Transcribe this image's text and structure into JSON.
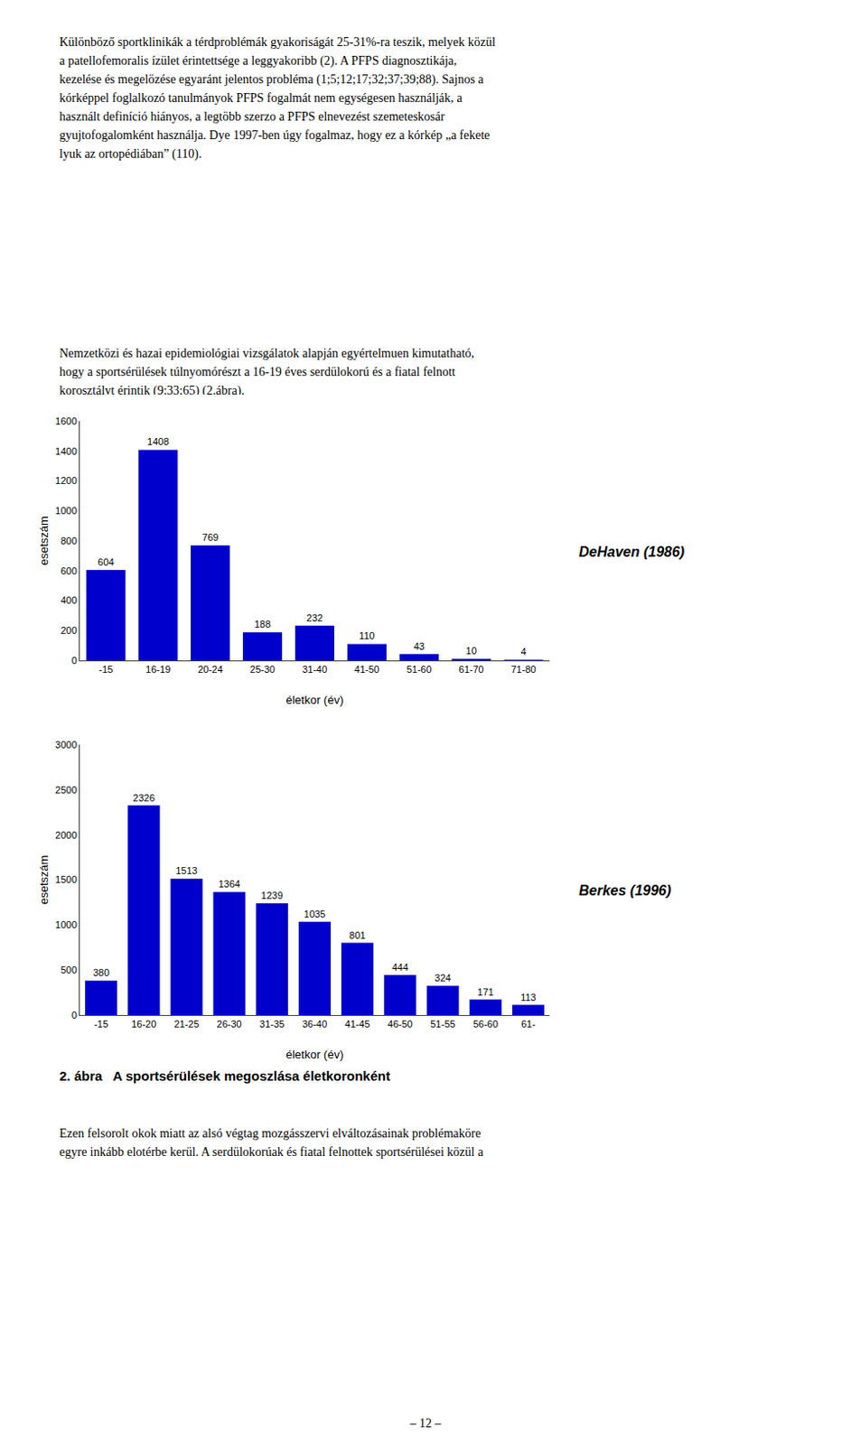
{
  "paragraphs": [
    "Különböző sportklinikák a térdproblémák gyakoriságát 25-31%-ra teszik, melyek közül\na patellofemoralis ízület érintettsége a leggyakoribb (2). A PFPS diagnosztikája,\nkezelése és megelözése egyaránt jelentos probléma (1;5;12;17;32;37;39;88). Sajnos a\nkórképpel foglalkozó tanulmányok PFPS fogalmát nem egységesen használják, a\nhasznált definíció hiányos, a legtöbb szerzo a PFPS elnevezést szemeteskosár\ngyujtofogalomként használja. Dye 1997-ben úgy fogalmaz, hogy ez a kórkép „a fekete\nlyuk az ortopédiában” (110).",
    "Nemzetközi és hazai epidemiológiai vizsgálatok alapján egyértelmuen kimutatható,\nhogy a sportsérülések túlnyomórészt a 16-19 éves serdülokorú és a fiatal felnott\nkorosztályt érintik (9;33;65) (2.ábra).",
    "Ezen felsorolt okok miatt az alsó végtag mozgásszervi elváltozásainak problémaköre\negyre inkább elotérbe kerül. A serdülokorúak és fiatal felnottek sportsérülései közül a"
  ],
  "caption": "2. ábra   A sportsérülések megoszlása életkoronként",
  "page_number": "– 12 –",
  "chart_data": [
    {
      "type": "bar",
      "ylabel": "esetszám",
      "xlabel": "életkor (év)",
      "annotations": [
        "DeHaven (1986)"
      ],
      "categories": [
        "-15",
        "16-19",
        "20-24",
        "25-30",
        "31-40",
        "41-50",
        "51-60",
        "61-70",
        "71-80"
      ],
      "values": [
        604,
        1408,
        769,
        188,
        232,
        110,
        43,
        10,
        4
      ],
      "color": "#0000cc",
      "ylim": [
        0,
        1600
      ],
      "yticks": [
        0,
        200,
        400,
        600,
        800,
        1000,
        1200,
        1400,
        1600
      ],
      "grid": false,
      "data_labels": true
    },
    {
      "type": "bar",
      "ylabel": "esetszám",
      "xlabel": "életkor (év)",
      "annotations": [
        "Berkes (1996)"
      ],
      "categories": [
        "-15",
        "16-20",
        "21-25",
        "26-30",
        "31-35",
        "36-40",
        "41-45",
        "46-50",
        "51-55",
        "56-60",
        "61-"
      ],
      "values": [
        380,
        2326,
        1513,
        1364,
        1239,
        1035,
        801,
        444,
        324,
        171,
        113
      ],
      "color": "#0000cc",
      "ylim": [
        0,
        3000
      ],
      "yticks": [
        0,
        500,
        1000,
        1500,
        2000,
        2500,
        3000
      ],
      "grid": false,
      "data_labels": true
    }
  ]
}
